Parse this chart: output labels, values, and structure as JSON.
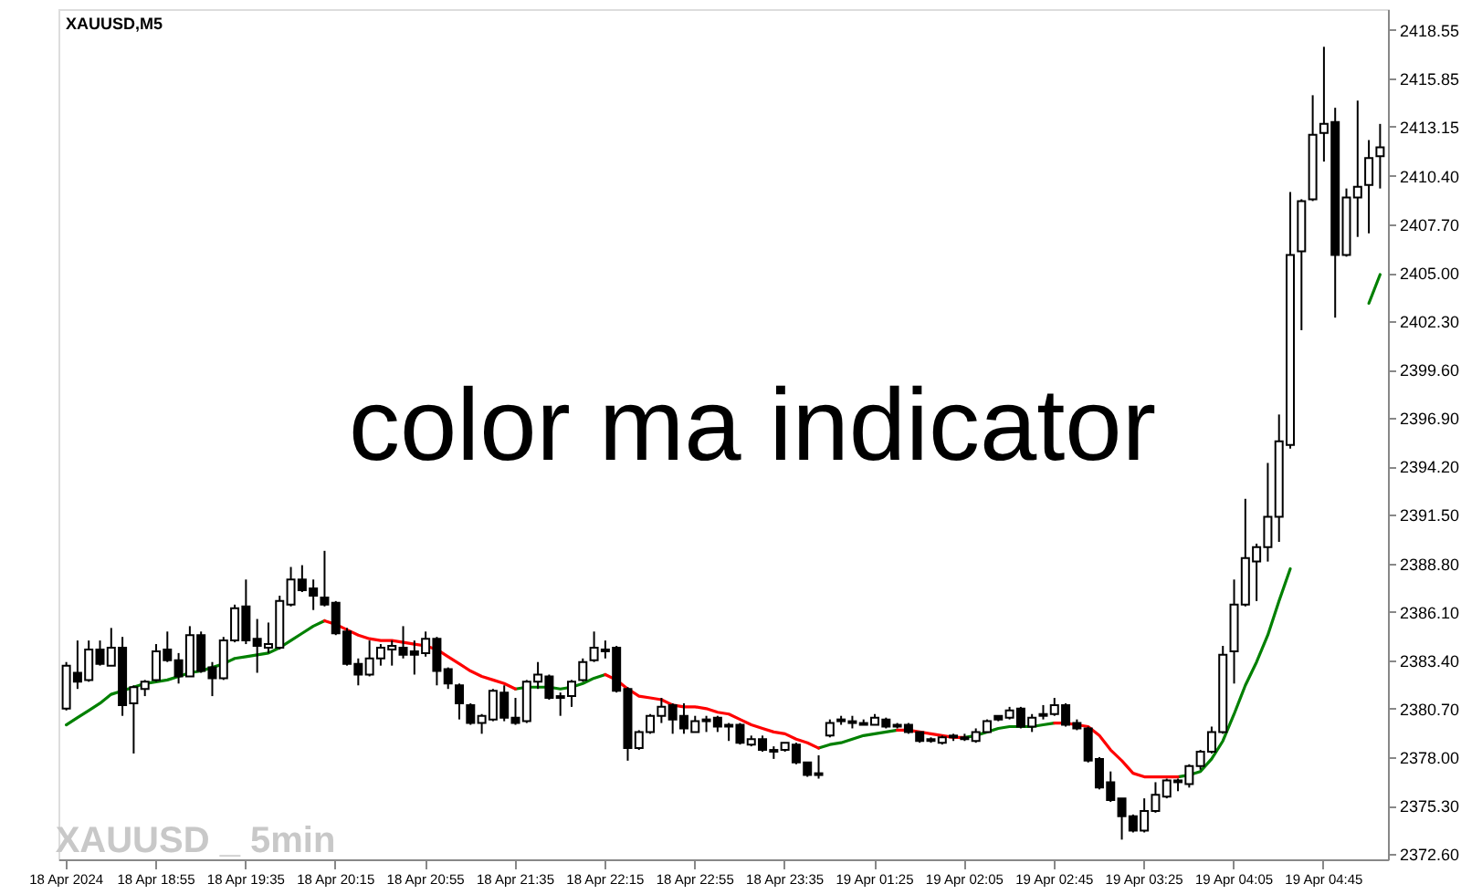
{
  "chart_data": {
    "type": "candlestick",
    "title": "XAUUSD,M5",
    "annotations": [
      "color ma indicator",
      "XAUUSD _ 5min"
    ],
    "categories": [
      "18 Apr 2024",
      null,
      null,
      null,
      null,
      null,
      null,
      null,
      "18 Apr 18:55",
      null,
      null,
      null,
      null,
      null,
      null,
      null,
      "18 Apr 19:35",
      null,
      null,
      null,
      null,
      null,
      null,
      null,
      "18 Apr 20:15",
      null,
      null,
      null,
      null,
      null,
      null,
      null,
      "18 Apr 20:55",
      null,
      null,
      null,
      null,
      null,
      null,
      null,
      "18 Apr 21:35",
      null,
      null,
      null,
      null,
      null,
      null,
      null,
      "18 Apr 22:15",
      null,
      null,
      null,
      null,
      null,
      null,
      null,
      "18 Apr 22:55",
      null,
      null,
      null,
      null,
      null,
      null,
      null,
      "18 Apr 23:35",
      null,
      null,
      null,
      null,
      null,
      null,
      null,
      "19 Apr 01:25",
      null,
      null,
      null,
      null,
      null,
      null,
      null,
      "19 Apr 02:05",
      null,
      null,
      null,
      null,
      null,
      null,
      null,
      "19 Apr 02:45",
      null,
      null,
      null,
      null,
      null,
      null,
      null,
      "19 Apr 03:25",
      null,
      null,
      null,
      null,
      null,
      null,
      null,
      "19 Apr 04:05",
      null,
      null,
      null,
      null,
      null,
      null,
      null,
      "19 Apr 04:45",
      null,
      null,
      null,
      null,
      null
    ],
    "ohlc": [
      [
        2380.7,
        2383.3,
        2380.6,
        2383.1
      ],
      [
        2382.7,
        2384.5,
        2381.8,
        2382.2
      ],
      [
        2382.3,
        2384.5,
        2382.2,
        2384.0
      ],
      [
        2384.0,
        2384.5,
        2383.1,
        2383.2
      ],
      [
        2383.1,
        2385.2,
        2383.1,
        2384.1
      ],
      [
        2384.1,
        2384.7,
        2380.3,
        2380.9
      ],
      [
        2381.0,
        2382.0,
        2378.2,
        2381.9
      ],
      [
        2381.8,
        2382.3,
        2381.4,
        2382.2
      ],
      [
        2382.3,
        2384.3,
        2382.2,
        2383.9
      ],
      [
        2384.0,
        2385.0,
        2383.3,
        2383.4
      ],
      [
        2383.4,
        2383.8,
        2382.1,
        2382.5
      ],
      [
        2382.5,
        2385.3,
        2382.5,
        2384.8
      ],
      [
        2384.8,
        2385.0,
        2382.7,
        2382.8
      ],
      [
        2383.0,
        2383.3,
        2381.4,
        2382.4
      ],
      [
        2382.4,
        2384.7,
        2382.3,
        2384.5
      ],
      [
        2384.5,
        2386.5,
        2384.4,
        2386.3
      ],
      [
        2386.4,
        2387.9,
        2384.3,
        2384.5
      ],
      [
        2384.6,
        2385.7,
        2382.7,
        2384.2
      ],
      [
        2384.1,
        2385.5,
        2383.8,
        2384.3
      ],
      [
        2384.1,
        2387.0,
        2384.0,
        2386.7
      ],
      [
        2386.5,
        2388.6,
        2386.4,
        2387.9
      ],
      [
        2387.9,
        2388.7,
        2387.2,
        2387.3
      ],
      [
        2387.4,
        2387.9,
        2386.2,
        2387.0
      ],
      [
        2386.9,
        2389.5,
        2386.4,
        2386.5
      ],
      [
        2386.6,
        2386.7,
        2384.8,
        2384.9
      ],
      [
        2385.0,
        2385.2,
        2383.1,
        2383.2
      ],
      [
        2383.2,
        2383.5,
        2382.0,
        2382.6
      ],
      [
        2382.6,
        2384.5,
        2382.5,
        2383.5
      ],
      [
        2383.5,
        2384.3,
        2383.1,
        2384.1
      ],
      [
        2384.0,
        2384.5,
        2383.1,
        2384.2
      ],
      [
        2384.1,
        2385.3,
        2383.5,
        2383.7
      ],
      [
        2383.9,
        2384.5,
        2382.6,
        2383.7
      ],
      [
        2383.8,
        2385.0,
        2383.6,
        2384.6
      ],
      [
        2384.6,
        2384.7,
        2382.0,
        2382.8
      ],
      [
        2382.9,
        2383.0,
        2381.8,
        2382.1
      ],
      [
        2382.0,
        2382.1,
        2380.1,
        2381.0
      ],
      [
        2380.9,
        2381.0,
        2379.8,
        2379.9
      ],
      [
        2379.9,
        2380.4,
        2379.3,
        2380.3
      ],
      [
        2380.1,
        2381.8,
        2380.0,
        2381.7
      ],
      [
        2381.6,
        2382.0,
        2380.0,
        2380.2
      ],
      [
        2380.2,
        2381.3,
        2379.8,
        2379.9
      ],
      [
        2380.0,
        2382.3,
        2379.9,
        2382.2
      ],
      [
        2382.2,
        2383.3,
        2381.8,
        2382.6
      ],
      [
        2382.5,
        2382.6,
        2381.2,
        2381.3
      ],
      [
        2381.4,
        2381.6,
        2380.3,
        2381.3
      ],
      [
        2381.4,
        2382.3,
        2380.8,
        2382.2
      ],
      [
        2382.3,
        2383.5,
        2382.2,
        2383.3
      ],
      [
        2383.4,
        2385.0,
        2383.3,
        2384.1
      ],
      [
        2384.0,
        2384.5,
        2383.5,
        2383.9
      ],
      [
        2384.1,
        2384.2,
        2381.6,
        2381.7
      ],
      [
        2381.8,
        2381.9,
        2377.8,
        2378.5
      ],
      [
        2378.5,
        2379.5,
        2378.4,
        2379.4
      ],
      [
        2379.4,
        2380.4,
        2379.3,
        2380.3
      ],
      [
        2380.3,
        2381.3,
        2379.9,
        2380.8
      ],
      [
        2380.9,
        2381.0,
        2379.3,
        2380.1
      ],
      [
        2380.3,
        2381.0,
        2379.3,
        2379.6
      ],
      [
        2379.4,
        2380.3,
        2379.4,
        2380.0
      ],
      [
        2380.0,
        2380.3,
        2379.4,
        2380.1
      ],
      [
        2380.2,
        2380.3,
        2379.4,
        2379.7
      ],
      [
        2379.8,
        2379.9,
        2378.9,
        2379.7
      ],
      [
        2379.8,
        2379.9,
        2378.7,
        2378.8
      ],
      [
        2378.7,
        2379.2,
        2378.6,
        2379.0
      ],
      [
        2379.0,
        2379.2,
        2378.3,
        2378.4
      ],
      [
        2378.4,
        2378.6,
        2377.9,
        2378.3
      ],
      [
        2378.4,
        2378.8,
        2378.3,
        2378.8
      ],
      [
        2378.7,
        2378.8,
        2377.6,
        2377.7
      ],
      [
        2377.7,
        2377.7,
        2376.9,
        2377.0
      ],
      [
        2377.1,
        2378.1,
        2376.8,
        2377.0
      ],
      [
        2379.2,
        2380.1,
        2379.1,
        2379.9
      ],
      [
        2380.0,
        2380.3,
        2379.8,
        2380.1
      ],
      [
        2379.9,
        2380.3,
        2379.6,
        2380.0
      ],
      [
        2379.8,
        2380.1,
        2379.8,
        2379.9
      ],
      [
        2379.8,
        2380.4,
        2379.8,
        2380.2
      ],
      [
        2380.1,
        2380.2,
        2379.6,
        2379.7
      ],
      [
        2379.8,
        2379.9,
        2379.6,
        2379.7
      ],
      [
        2379.8,
        2379.9,
        2379.3,
        2379.4
      ],
      [
        2379.4,
        2379.4,
        2378.8,
        2378.9
      ],
      [
        2379.0,
        2379.1,
        2378.8,
        2378.9
      ],
      [
        2378.8,
        2379.2,
        2378.7,
        2379.1
      ],
      [
        2379.1,
        2379.3,
        2378.9,
        2379.2
      ],
      [
        2379.1,
        2379.3,
        2378.9,
        2379.0
      ],
      [
        2378.9,
        2379.6,
        2378.8,
        2379.4
      ],
      [
        2379.4,
        2380.1,
        2379.4,
        2380.0
      ],
      [
        2380.3,
        2380.3,
        2380.0,
        2380.1
      ],
      [
        2380.2,
        2380.8,
        2380.1,
        2380.6
      ],
      [
        2380.7,
        2380.8,
        2379.6,
        2379.7
      ],
      [
        2379.7,
        2380.4,
        2379.4,
        2380.2
      ],
      [
        2380.3,
        2380.9,
        2380.1,
        2380.4
      ],
      [
        2380.4,
        2381.3,
        2380.3,
        2380.9
      ],
      [
        2380.9,
        2381.0,
        2379.7,
        2379.8
      ],
      [
        2379.9,
        2380.1,
        2379.5,
        2379.6
      ],
      [
        2379.6,
        2379.7,
        2377.7,
        2377.8
      ],
      [
        2377.9,
        2378.0,
        2376.2,
        2376.3
      ],
      [
        2376.6,
        2377.2,
        2375.5,
        2375.6
      ],
      [
        2375.7,
        2375.7,
        2373.4,
        2374.7
      ],
      [
        2374.7,
        2374.8,
        2373.8,
        2373.9
      ],
      [
        2373.9,
        2375.7,
        2373.8,
        2375.0
      ],
      [
        2375.0,
        2376.6,
        2374.9,
        2375.9
      ],
      [
        2375.8,
        2376.8,
        2375.7,
        2376.7
      ],
      [
        2376.6,
        2376.8,
        2376.1,
        2376.7
      ],
      [
        2376.5,
        2377.6,
        2376.3,
        2377.5
      ],
      [
        2377.5,
        2378.4,
        2377.3,
        2378.3
      ],
      [
        2378.3,
        2379.7,
        2378.2,
        2379.4
      ],
      [
        2379.4,
        2384.2,
        2379.3,
        2383.7
      ],
      [
        2383.9,
        2387.9,
        2382.1,
        2386.5
      ],
      [
        2386.5,
        2392.4,
        2386.4,
        2389.1
      ],
      [
        2388.9,
        2389.9,
        2386.7,
        2389.7
      ],
      [
        2389.7,
        2394.4,
        2388.9,
        2391.4
      ],
      [
        2391.4,
        2397.1,
        2390.0,
        2395.6
      ],
      [
        2395.4,
        2409.5,
        2395.2,
        2406.0
      ],
      [
        2406.2,
        2409.1,
        2401.8,
        2409.0
      ],
      [
        2409.1,
        2414.9,
        2409.0,
        2412.7
      ],
      [
        2412.8,
        2417.6,
        2411.2,
        2413.3
      ],
      [
        2413.4,
        2414.2,
        2402.5,
        2406.0
      ],
      [
        2406.0,
        2409.7,
        2405.9,
        2409.2
      ],
      [
        2409.2,
        2414.6,
        2407.0,
        2409.8
      ],
      [
        2409.9,
        2412.4,
        2407.2,
        2411.4
      ],
      [
        2411.5,
        2413.3,
        2409.7,
        2412.0
      ]
    ],
    "series": [
      {
        "type": "line",
        "color": "#008000",
        "values": [
          2379.8,
          2380.2,
          2380.6,
          2381.0,
          2381.5,
          2381.7,
          2381.9,
          2382.1,
          2382.2,
          2382.3,
          2382.5,
          2382.7,
          2382.8,
          2383.0,
          2383.2,
          2383.5,
          2383.6,
          2383.7,
          2383.8,
          2384.1,
          2384.5,
          2384.9,
          2385.3,
          2385.6,
          null,
          null,
          null,
          null,
          null,
          null,
          null,
          null,
          null,
          null,
          null,
          null,
          null,
          null,
          null,
          null,
          2381.8,
          2381.9,
          2381.9,
          2381.9,
          2381.8,
          2381.9,
          2382.1,
          2382.4,
          2382.6,
          null,
          null,
          null,
          null,
          null,
          null,
          null,
          null,
          null,
          null,
          null,
          null,
          null,
          null,
          null,
          null,
          null,
          null,
          2378.5,
          2378.7,
          2378.8,
          2379.0,
          2379.2,
          2379.3,
          2379.4,
          2379.5,
          null,
          null,
          null,
          null,
          null,
          2379.1,
          2379.2,
          2379.4,
          2379.6,
          2379.7,
          2379.7,
          2379.7,
          2379.8,
          2379.9,
          null,
          null,
          null,
          null,
          null,
          null,
          null,
          null,
          null,
          null,
          2376.9,
          2377.0,
          2377.2,
          2377.9,
          2378.9,
          2380.4,
          2382.0,
          2383.3,
          2384.8,
          2386.7,
          2388.5,
          null,
          null,
          null,
          null,
          null,
          null,
          2403.3,
          2404.9
        ]
      },
      {
        "type": "line",
        "color": "#ff0000",
        "values": [
          null,
          null,
          null,
          null,
          null,
          null,
          null,
          null,
          null,
          null,
          null,
          null,
          null,
          null,
          null,
          null,
          null,
          null,
          null,
          null,
          null,
          null,
          null,
          2385.6,
          2385.4,
          2385.1,
          2384.8,
          2384.6,
          2384.5,
          2384.5,
          2384.4,
          2384.3,
          2384.2,
          2384.0,
          2383.6,
          2383.2,
          2382.8,
          2382.5,
          2382.3,
          2382.1,
          2381.8,
          null,
          null,
          null,
          null,
          null,
          null,
          null,
          2382.6,
          2382.3,
          2381.8,
          2381.4,
          2381.3,
          2381.2,
          2380.9,
          2380.8,
          2380.8,
          2380.7,
          2380.5,
          2380.4,
          2380.1,
          2379.8,
          2379.6,
          2379.4,
          2379.3,
          2379.0,
          2378.8,
          2378.5,
          null,
          null,
          null,
          null,
          null,
          null,
          2379.5,
          2379.5,
          2379.4,
          2379.3,
          2379.2,
          2379.1,
          2379.1,
          null,
          null,
          null,
          null,
          null,
          null,
          null,
          2379.9,
          2379.9,
          2379.8,
          2379.7,
          2379.2,
          2378.4,
          2377.8,
          2377.1,
          2376.9,
          2376.9,
          2376.9,
          2376.9,
          null,
          null,
          null,
          null,
          null,
          null,
          null,
          null,
          null,
          null,
          null,
          null,
          null,
          null,
          null,
          null,
          null,
          null
        ]
      }
    ],
    "ylim": [
      2372.3,
      2419.7
    ],
    "yticks": [
      2418.55,
      2415.85,
      2413.15,
      {
        "value": 2410.4,
        "label": "2410.40"
      },
      {
        "value": 2407.7,
        "label": "2407.70"
      },
      {
        "value": 2405.0,
        "label": "2405.00"
      },
      {
        "value": 2402.3,
        "label": "2402.30"
      },
      {
        "value": 2399.6,
        "label": "2399.60"
      },
      {
        "value": 2396.9,
        "label": "2396.90"
      },
      {
        "value": 2394.2,
        "label": "2394.20"
      },
      {
        "value": 2391.5,
        "label": "2391.50"
      },
      {
        "value": 2388.8,
        "label": "2388.80"
      },
      {
        "value": 2386.1,
        "label": "2386.10"
      },
      {
        "value": 2383.4,
        "label": "2383.40"
      },
      {
        "value": 2380.7,
        "label": "2380.70"
      },
      {
        "value": 2378.0,
        "label": "2378.00"
      },
      {
        "value": 2375.3,
        "label": "2375.30"
      },
      {
        "value": 2372.6,
        "label": "2372.60"
      }
    ],
    "grid": false
  }
}
